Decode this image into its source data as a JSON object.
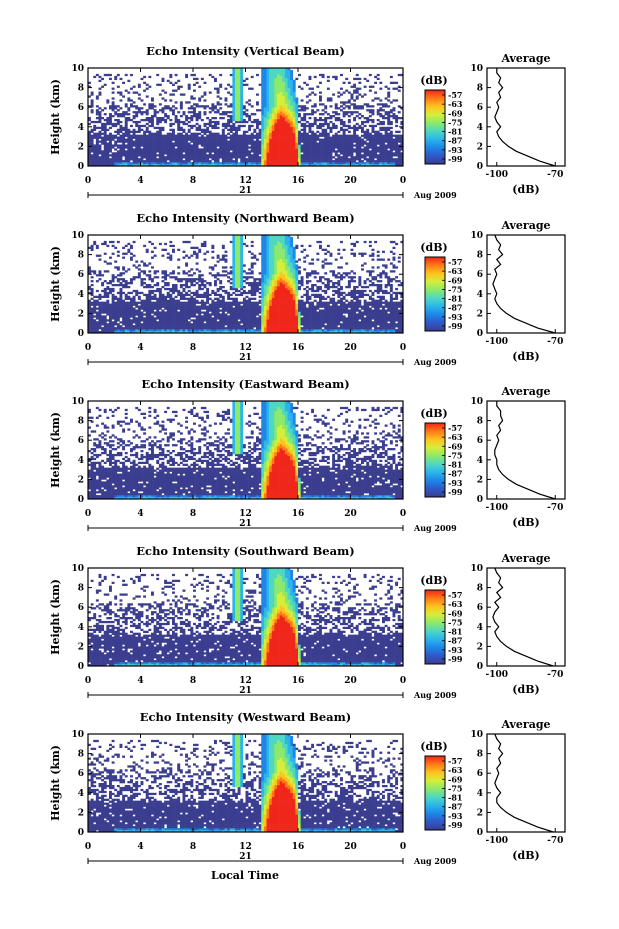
{
  "figure": {
    "footer_xlabel": "Local Time"
  },
  "shared": {
    "ylabel": "Height (km)",
    "x_ticks": [
      "0",
      "4",
      "8",
      "12",
      "16",
      "20",
      "0"
    ],
    "y_ticks": [
      "0",
      "2",
      "4",
      "6",
      "8",
      "10"
    ],
    "date_day": "21",
    "date_month": "Aug 2009",
    "colorbar_unit": "(dB)",
    "colorbar_ticks": [
      "-57",
      "-63",
      "-69",
      "-75",
      "-81",
      "-87",
      "-93",
      "-99"
    ],
    "avg_title": "Average",
    "avg_xticks": [
      "-100",
      "-70"
    ],
    "avg_xlabel": "(dB)",
    "palette": [
      "#3b3d8f",
      "#2f58c8",
      "#1f86e8",
      "#2ab5ea",
      "#4fd7c2",
      "#8ce96a",
      "#d6ee3a",
      "#ffc21f",
      "#ff7a16",
      "#f0261b"
    ]
  },
  "chart_data": [
    {
      "type": "heatmap",
      "title": "Echo Intensity (Vertical Beam)",
      "xlabel": "",
      "ylabel": "Height (km)",
      "xlim": [
        0,
        24
      ],
      "ylim": [
        0,
        10
      ],
      "zlim": [
        -99,
        -57
      ],
      "color_unit": "(dB)",
      "legend": "right",
      "average_profile": {
        "height_km": [
          0,
          0.5,
          1,
          1.5,
          2,
          2.5,
          3,
          3.5,
          4,
          4.5,
          5,
          5.5,
          6,
          6.5,
          7,
          7.5,
          8,
          8.5,
          9,
          9.5,
          10
        ],
        "db": [
          -70,
          -78,
          -84,
          -90,
          -94,
          -97,
          -99,
          -100,
          -98,
          -100,
          -101,
          -100,
          -99,
          -100,
          -98,
          -99,
          -97,
          -99,
          -98,
          -100,
          -100
        ],
        "xlim": [
          -105,
          -65
        ]
      }
    },
    {
      "type": "heatmap",
      "title": "Echo Intensity (Northward Beam)",
      "xlabel": "",
      "ylabel": "Height (km)",
      "xlim": [
        0,
        24
      ],
      "ylim": [
        0,
        10
      ],
      "zlim": [
        -99,
        -57
      ],
      "color_unit": "(dB)",
      "legend": "right",
      "average_profile": {
        "height_km": [
          0,
          0.5,
          1,
          1.5,
          2,
          2.5,
          3,
          3.5,
          4,
          4.5,
          5,
          5.5,
          6,
          6.5,
          7,
          7.5,
          8,
          8.5,
          9,
          9.5,
          10
        ],
        "db": [
          -70,
          -79,
          -85,
          -91,
          -95,
          -98,
          -100,
          -101,
          -100,
          -101,
          -102,
          -101,
          -100,
          -101,
          -98,
          -100,
          -97,
          -99,
          -98,
          -100,
          -101
        ],
        "xlim": [
          -105,
          -65
        ]
      }
    },
    {
      "type": "heatmap",
      "title": "Echo Intensity (Eastward Beam)",
      "xlabel": "",
      "ylabel": "Height (km)",
      "xlim": [
        0,
        24
      ],
      "ylim": [
        0,
        10
      ],
      "zlim": [
        -99,
        -57
      ],
      "color_unit": "(dB)",
      "legend": "right",
      "average_profile": {
        "height_km": [
          0,
          0.5,
          1,
          1.5,
          2,
          2.5,
          3,
          3.5,
          4,
          4.5,
          5,
          5.5,
          6,
          6.5,
          7,
          7.5,
          8,
          8.5,
          9,
          9.5,
          10
        ],
        "db": [
          -70,
          -78,
          -84,
          -90,
          -94,
          -97,
          -99,
          -100,
          -100,
          -101,
          -101,
          -100,
          -99,
          -100,
          -98,
          -99,
          -97,
          -98,
          -98,
          -100,
          -100
        ],
        "xlim": [
          -105,
          -65
        ]
      }
    },
    {
      "type": "heatmap",
      "title": "Echo Intensity (Southward Beam)",
      "xlabel": "",
      "ylabel": "Height (km)",
      "xlim": [
        0,
        24
      ],
      "ylim": [
        0,
        10
      ],
      "zlim": [
        -99,
        -57
      ],
      "color_unit": "(dB)",
      "legend": "right",
      "average_profile": {
        "height_km": [
          0,
          0.5,
          1,
          1.5,
          2,
          2.5,
          3,
          3.5,
          4,
          4.5,
          5,
          5.5,
          6,
          6.5,
          7,
          7.5,
          8,
          8.5,
          9,
          9.5,
          10
        ],
        "db": [
          -71,
          -79,
          -85,
          -91,
          -95,
          -98,
          -100,
          -101,
          -99,
          -101,
          -102,
          -101,
          -99,
          -101,
          -98,
          -100,
          -97,
          -99,
          -98,
          -100,
          -101
        ],
        "xlim": [
          -105,
          -65
        ]
      }
    },
    {
      "type": "heatmap",
      "title": "Echo Intensity (Westward Beam)",
      "xlabel": "",
      "ylabel": "Height (km)",
      "xlim": [
        0,
        24
      ],
      "ylim": [
        0,
        10
      ],
      "zlim": [
        -99,
        -57
      ],
      "color_unit": "(dB)",
      "legend": "right",
      "average_profile": {
        "height_km": [
          0,
          0.5,
          1,
          1.5,
          2,
          2.5,
          3,
          3.5,
          4,
          4.5,
          5,
          5.5,
          6,
          6.5,
          7,
          7.5,
          8,
          8.5,
          9,
          9.5,
          10
        ],
        "db": [
          -71,
          -79,
          -85,
          -91,
          -95,
          -98,
          -100,
          -100,
          -98,
          -100,
          -101,
          -100,
          -99,
          -100,
          -98,
          -99,
          -97,
          -99,
          -98,
          -100,
          -101
        ],
        "xlim": [
          -105,
          -65
        ]
      }
    }
  ]
}
